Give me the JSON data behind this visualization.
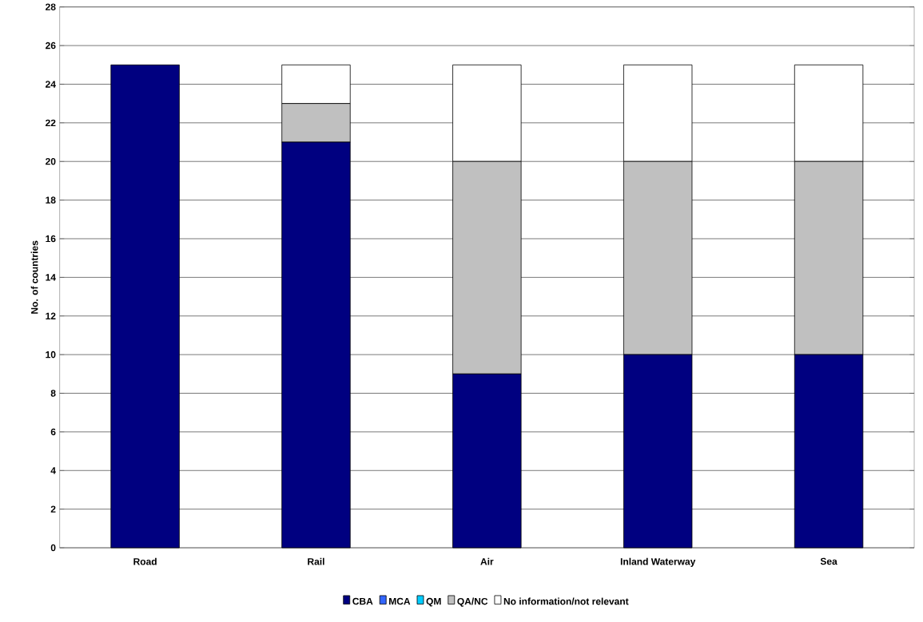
{
  "chart_data": {
    "type": "bar",
    "stacked": true,
    "ylabel": "No. of countries",
    "categories": [
      "Road",
      "Rail",
      "Air",
      "Inland Waterway",
      "Sea"
    ],
    "series": [
      {
        "name": "CBA",
        "color": "#000080",
        "values": [
          25,
          21,
          9,
          10,
          10
        ]
      },
      {
        "name": "MCA",
        "color": "#3366ff",
        "values": [
          0,
          0,
          0,
          0,
          0
        ]
      },
      {
        "name": "QM",
        "color": "#00ccff",
        "values": [
          0,
          0,
          0,
          0,
          0
        ]
      },
      {
        "name": "QA/NC",
        "color": "#c0c0c0",
        "values": [
          0,
          2,
          11,
          10,
          10
        ]
      },
      {
        "name": "No information/not relevant",
        "color": "#ffffff",
        "values": [
          0,
          2,
          5,
          5,
          5
        ]
      }
    ],
    "ylim": [
      0,
      28
    ],
    "yticks": [
      0,
      2,
      4,
      6,
      8,
      10,
      12,
      14,
      16,
      18,
      20,
      22,
      24,
      26,
      28
    ],
    "grid": "y",
    "legend": "bottom"
  }
}
